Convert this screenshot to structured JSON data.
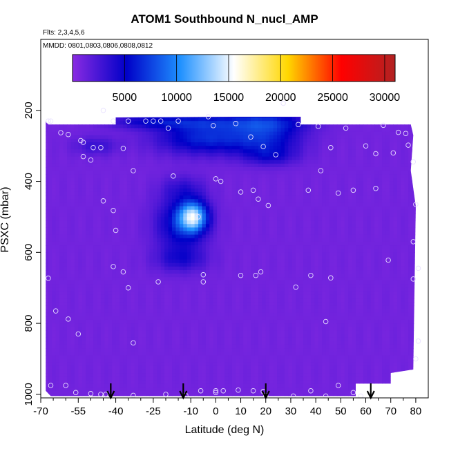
{
  "chart_data": {
    "type": "heatmap",
    "title": "ATOM1 Southbound N_nucl_AMP",
    "notes": [
      "Flts: 2,3,4,5,6",
      "MMDD: 0801,0803,0806,0808,0812"
    ],
    "xlabel": "Latitude (deg N)",
    "ylabel": "PSXC (mbar)",
    "xlim": [
      -70,
      85
    ],
    "ylim": [
      1010,
      0
    ],
    "x_ticks": [
      -70,
      -55,
      -40,
      -25,
      -10,
      0,
      10,
      20,
      30,
      40,
      50,
      60,
      70,
      80
    ],
    "x_tick_labels": [
      "-70",
      "-55",
      "-40",
      "-25",
      "-10",
      "0",
      "10",
      "20",
      "30",
      "40",
      "50",
      "60",
      "70",
      "80"
    ],
    "x_minor_ticks": [
      -65,
      -60,
      -50,
      -45,
      -35,
      -30,
      -20,
      -15,
      -5,
      5,
      15,
      25,
      35,
      45,
      55,
      65,
      75
    ],
    "y_ticks": [
      200,
      400,
      600,
      800,
      1000
    ],
    "y_tick_labels": [
      "200",
      "400",
      "600",
      "800",
      "1000"
    ],
    "colorbar": {
      "min": 0,
      "max": 31000,
      "ticks": [
        5000,
        10000,
        15000,
        20000,
        25000,
        30000
      ],
      "tick_labels": [
        "5000",
        "10000",
        "15000",
        "20000",
        "25000",
        "30000"
      ],
      "colors": [
        "#8a2be2",
        "#0000c8",
        "#1e90ff",
        "#ffffff",
        "#ffd700",
        "#ff0000",
        "#b22222"
      ]
    },
    "background_value": 900,
    "domain_outline": [
      [
        -68,
        230
      ],
      [
        -67,
        240
      ],
      [
        -40,
        240
      ],
      [
        -40,
        220
      ],
      [
        7,
        218
      ],
      [
        34,
        218
      ],
      [
        34,
        240
      ],
      [
        78,
        240
      ],
      [
        79,
        270
      ],
      [
        78,
        370
      ],
      [
        80,
        470
      ],
      [
        79,
        930
      ],
      [
        70,
        940
      ],
      [
        70,
        970
      ],
      [
        56,
        970
      ],
      [
        56,
        1005
      ],
      [
        -66,
        1005
      ],
      [
        -68,
        990
      ]
    ],
    "features": [
      {
        "lat": -5,
        "p": 278,
        "value": 5500,
        "sigma_lat": 13,
        "sigma_p": 32
      },
      {
        "lat": 20,
        "p": 282,
        "value": 4800,
        "sigma_lat": 10,
        "sigma_p": 35
      },
      {
        "lat": 20,
        "p": 232,
        "value": 4500,
        "sigma_lat": 12,
        "sigma_p": 22
      },
      {
        "lat": -10,
        "p": 232,
        "value": 3500,
        "sigma_lat": 14,
        "sigma_p": 16
      },
      {
        "lat": -30,
        "p": 232,
        "value": 2500,
        "sigma_lat": 10,
        "sigma_p": 14
      },
      {
        "lat": 22,
        "p": 330,
        "value": 2400,
        "sigma_lat": 7,
        "sigma_p": 18
      },
      {
        "lat": -9,
        "p": 500,
        "value": 11000,
        "sigma_lat": 4,
        "sigma_p": 30
      },
      {
        "lat": -14,
        "p": 520,
        "value": 5000,
        "sigma_lat": 7,
        "sigma_p": 55
      },
      {
        "lat": -13,
        "p": 420,
        "value": 2000,
        "sigma_lat": 6,
        "sigma_p": 25
      },
      {
        "lat": -14,
        "p": 620,
        "value": 2800,
        "sigma_lat": 7,
        "sigma_p": 25
      },
      {
        "lat": -48,
        "p": 300,
        "value": 2200,
        "sigma_lat": 6,
        "sigma_p": 18
      }
    ],
    "observations": [
      [
        -67,
        230
      ],
      [
        -66,
        230
      ],
      [
        -62,
        263
      ],
      [
        -59,
        268
      ],
      [
        -54,
        285
      ],
      [
        -53,
        290
      ],
      [
        -53,
        330
      ],
      [
        -49,
        305
      ],
      [
        -46,
        305
      ],
      [
        -45,
        200
      ],
      [
        -41,
        230
      ],
      [
        -37,
        307
      ],
      [
        -35,
        230
      ],
      [
        -33,
        370
      ],
      [
        -28,
        230
      ],
      [
        -25,
        230
      ],
      [
        -22,
        230
      ],
      [
        -19,
        250
      ],
      [
        -17,
        385
      ],
      [
        -15,
        230
      ],
      [
        -7,
        500
      ],
      [
        -3,
        218
      ],
      [
        -1,
        243
      ],
      [
        0,
        393
      ],
      [
        2,
        400
      ],
      [
        8,
        237
      ],
      [
        10,
        430
      ],
      [
        14,
        275
      ],
      [
        15,
        425
      ],
      [
        17,
        450
      ],
      [
        19,
        302
      ],
      [
        21,
        468
      ],
      [
        24,
        325
      ],
      [
        27,
        180
      ],
      [
        33,
        240
      ],
      [
        37,
        425
      ],
      [
        41,
        245
      ],
      [
        42,
        370
      ],
      [
        46,
        305
      ],
      [
        49,
        433
      ],
      [
        52,
        250
      ],
      [
        55,
        425
      ],
      [
        60,
        300
      ],
      [
        64,
        322
      ],
      [
        64,
        420
      ],
      [
        67,
        242
      ],
      [
        71,
        320
      ],
      [
        73,
        262
      ],
      [
        76,
        265
      ],
      [
        77,
        298
      ],
      [
        79,
        345
      ],
      [
        80,
        465
      ],
      [
        79,
        570
      ],
      [
        81,
        645
      ],
      [
        79,
        675
      ],
      [
        81,
        850
      ],
      [
        80,
        900
      ],
      [
        -50,
        340
      ],
      [
        -45,
        455
      ],
      [
        -41,
        482
      ],
      [
        -40,
        538
      ],
      [
        -41,
        640
      ],
      [
        -37,
        655
      ],
      [
        -35,
        700
      ],
      [
        -23,
        683
      ],
      [
        -5,
        663
      ],
      [
        -5,
        683
      ],
      [
        10,
        665
      ],
      [
        16,
        665
      ],
      [
        18,
        655
      ],
      [
        32,
        698
      ],
      [
        38,
        665
      ],
      [
        44,
        795
      ],
      [
        46,
        672
      ],
      [
        69,
        622
      ],
      [
        -67,
        673
      ],
      [
        -64,
        765
      ],
      [
        -59,
        788
      ],
      [
        -55,
        830
      ],
      [
        -33,
        855
      ],
      [
        -66,
        975
      ],
      [
        -60,
        975
      ],
      [
        -56,
        995
      ],
      [
        -50,
        998
      ],
      [
        -46,
        1000
      ],
      [
        -44,
        1000
      ],
      [
        -33,
        1003
      ],
      [
        -20,
        1000
      ],
      [
        -12,
        1003
      ],
      [
        -6,
        990
      ],
      [
        0,
        990
      ],
      [
        0,
        995
      ],
      [
        3,
        990
      ],
      [
        9,
        988
      ],
      [
        15,
        990
      ],
      [
        19,
        992
      ],
      [
        20,
        1003
      ],
      [
        31,
        1005
      ],
      [
        38,
        990
      ],
      [
        44,
        1005
      ],
      [
        49,
        975
      ],
      [
        55,
        995
      ],
      [
        58,
        1005
      ]
    ],
    "arrow_latitudes": [
      -42,
      -13,
      20,
      62
    ]
  }
}
